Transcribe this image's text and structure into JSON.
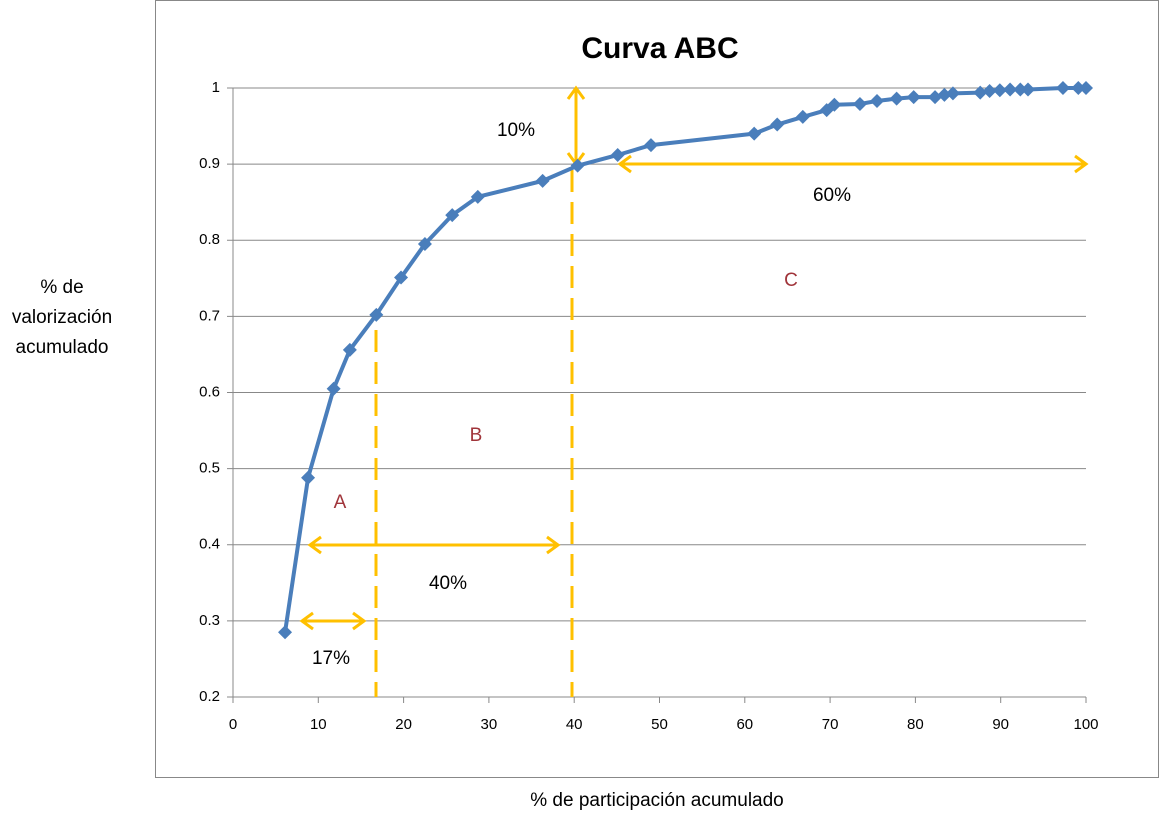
{
  "chart_data": {
    "type": "line",
    "title": "Curva ABC",
    "xlabel": "% de participación acumulado",
    "ylabel": "% de valorización acumulado",
    "annotations": [
      "10%",
      "60%",
      "C",
      "B",
      "A",
      "40%",
      "17%"
    ],
    "x": [
      6.1,
      8.8,
      11.8,
      13.7,
      16.8,
      19.7,
      22.5,
      25.7,
      28.7,
      36.3,
      40.4,
      45.1,
      49.0,
      61.1,
      63.8,
      66.8,
      69.6,
      70.5,
      73.5,
      75.5,
      77.8,
      79.8,
      82.3,
      83.4,
      84.4,
      87.6,
      88.7,
      89.9,
      91.1,
      92.3,
      93.2,
      97.3,
      99.1,
      100
    ],
    "values": [
      0.285,
      0.488,
      0.605,
      0.656,
      0.702,
      0.751,
      0.795,
      0.833,
      0.857,
      0.878,
      0.898,
      0.912,
      0.925,
      0.94,
      0.952,
      0.962,
      0.971,
      0.978,
      0.979,
      0.983,
      0.986,
      0.988,
      0.988,
      0.991,
      0.993,
      0.994,
      0.996,
      0.997,
      0.998,
      0.998,
      0.998,
      1.0,
      1.0,
      1.0
    ],
    "color": "#4a7ebb",
    "xlim": [
      0,
      100
    ],
    "xticks": [
      0,
      10,
      20,
      30,
      40,
      50,
      60,
      70,
      80,
      90,
      100
    ],
    "ylim": [
      0.2,
      1
    ],
    "yticks": [
      0.2,
      0.3,
      0.4,
      0.5,
      0.6,
      0.7,
      0.8,
      0.9,
      1
    ],
    "grid": true
  }
}
